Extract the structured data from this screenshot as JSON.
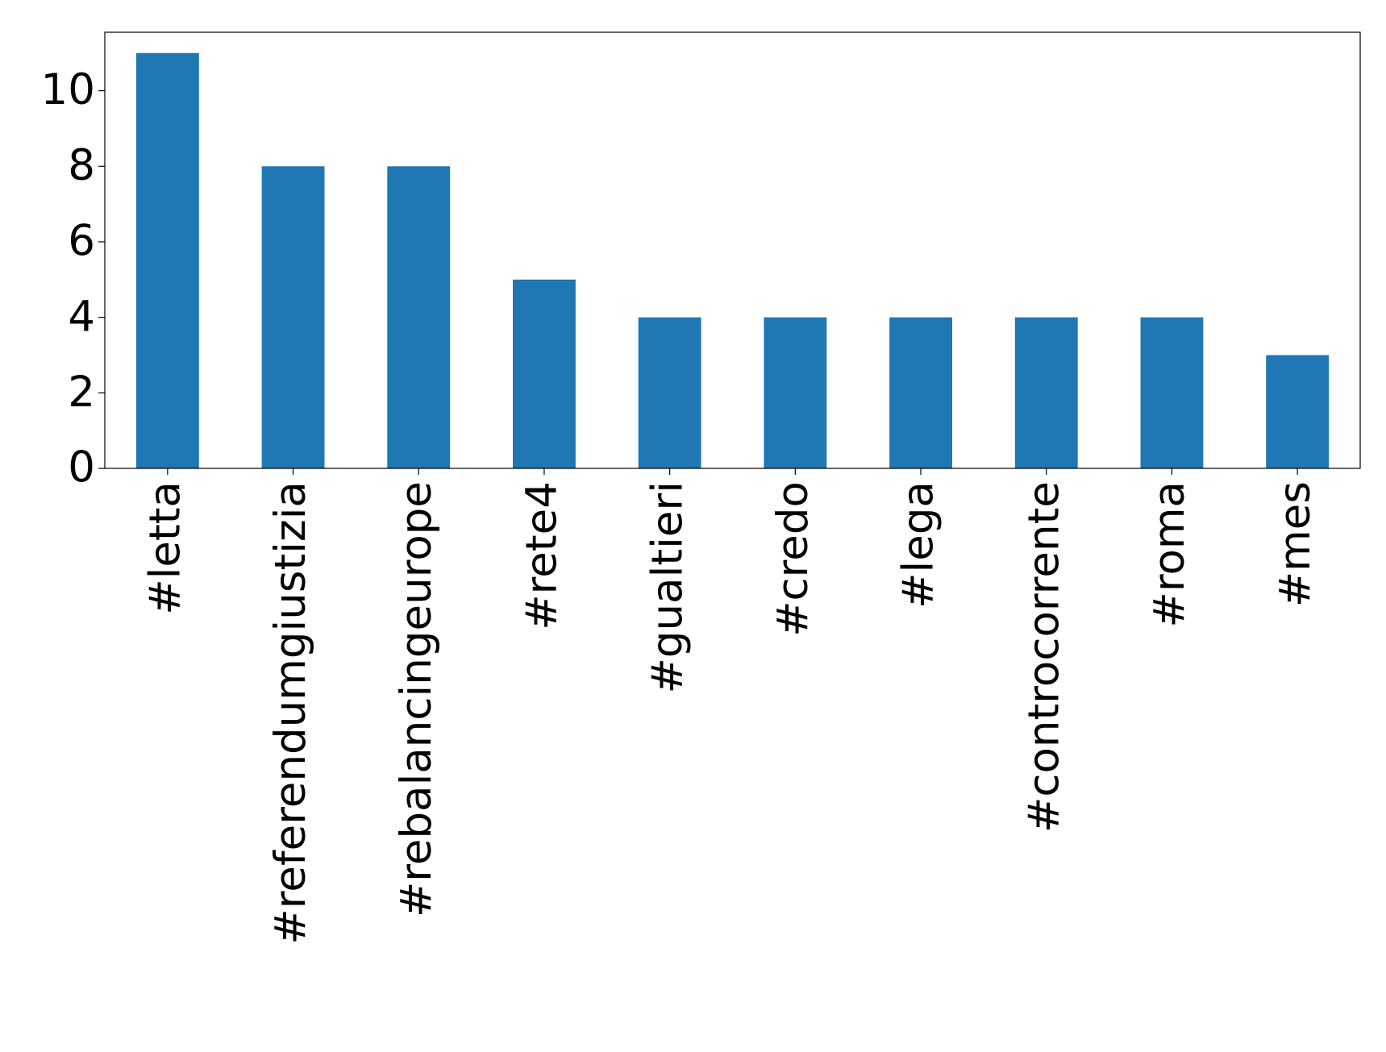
{
  "chart_data": {
    "type": "bar",
    "categories": [
      "#letta",
      "#referendumgiustizia",
      "#rebalancingeurope",
      "#rete4",
      "#gualtieri",
      "#credo",
      "#lega",
      "#controcorrente",
      "#roma",
      "#mes"
    ],
    "values": [
      11,
      8,
      8,
      5,
      4,
      4,
      4,
      4,
      4,
      3
    ],
    "color": "#1f77b4",
    "ylim": [
      0,
      11.55
    ],
    "yticks": [
      0,
      2,
      4,
      6,
      8,
      10
    ],
    "grid": false
  }
}
